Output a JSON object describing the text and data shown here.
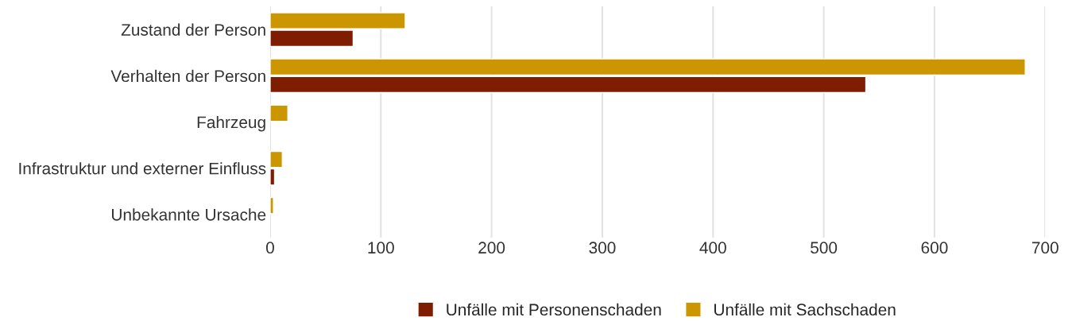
{
  "chart_data": {
    "type": "bar",
    "orientation": "horizontal",
    "categories": [
      "Zustand der Person",
      "Verhalten der Person",
      "Fahrzeug",
      "Infrastruktur und externer Einfluss",
      "Unbekannte Ursache"
    ],
    "series": [
      {
        "name": "Unfälle mit Personenschaden",
        "color": "#7f1d00",
        "values": [
          75,
          538,
          null,
          4,
          null
        ]
      },
      {
        "name": "Unfälle mit Sachschaden",
        "color": "#cc9600",
        "values": [
          122,
          682,
          16,
          11,
          3
        ]
      }
    ],
    "xlim": [
      0,
      700
    ],
    "xticks": [
      0,
      100,
      200,
      300,
      400,
      500,
      600,
      700
    ],
    "grid": "x",
    "legend": "bottom"
  }
}
